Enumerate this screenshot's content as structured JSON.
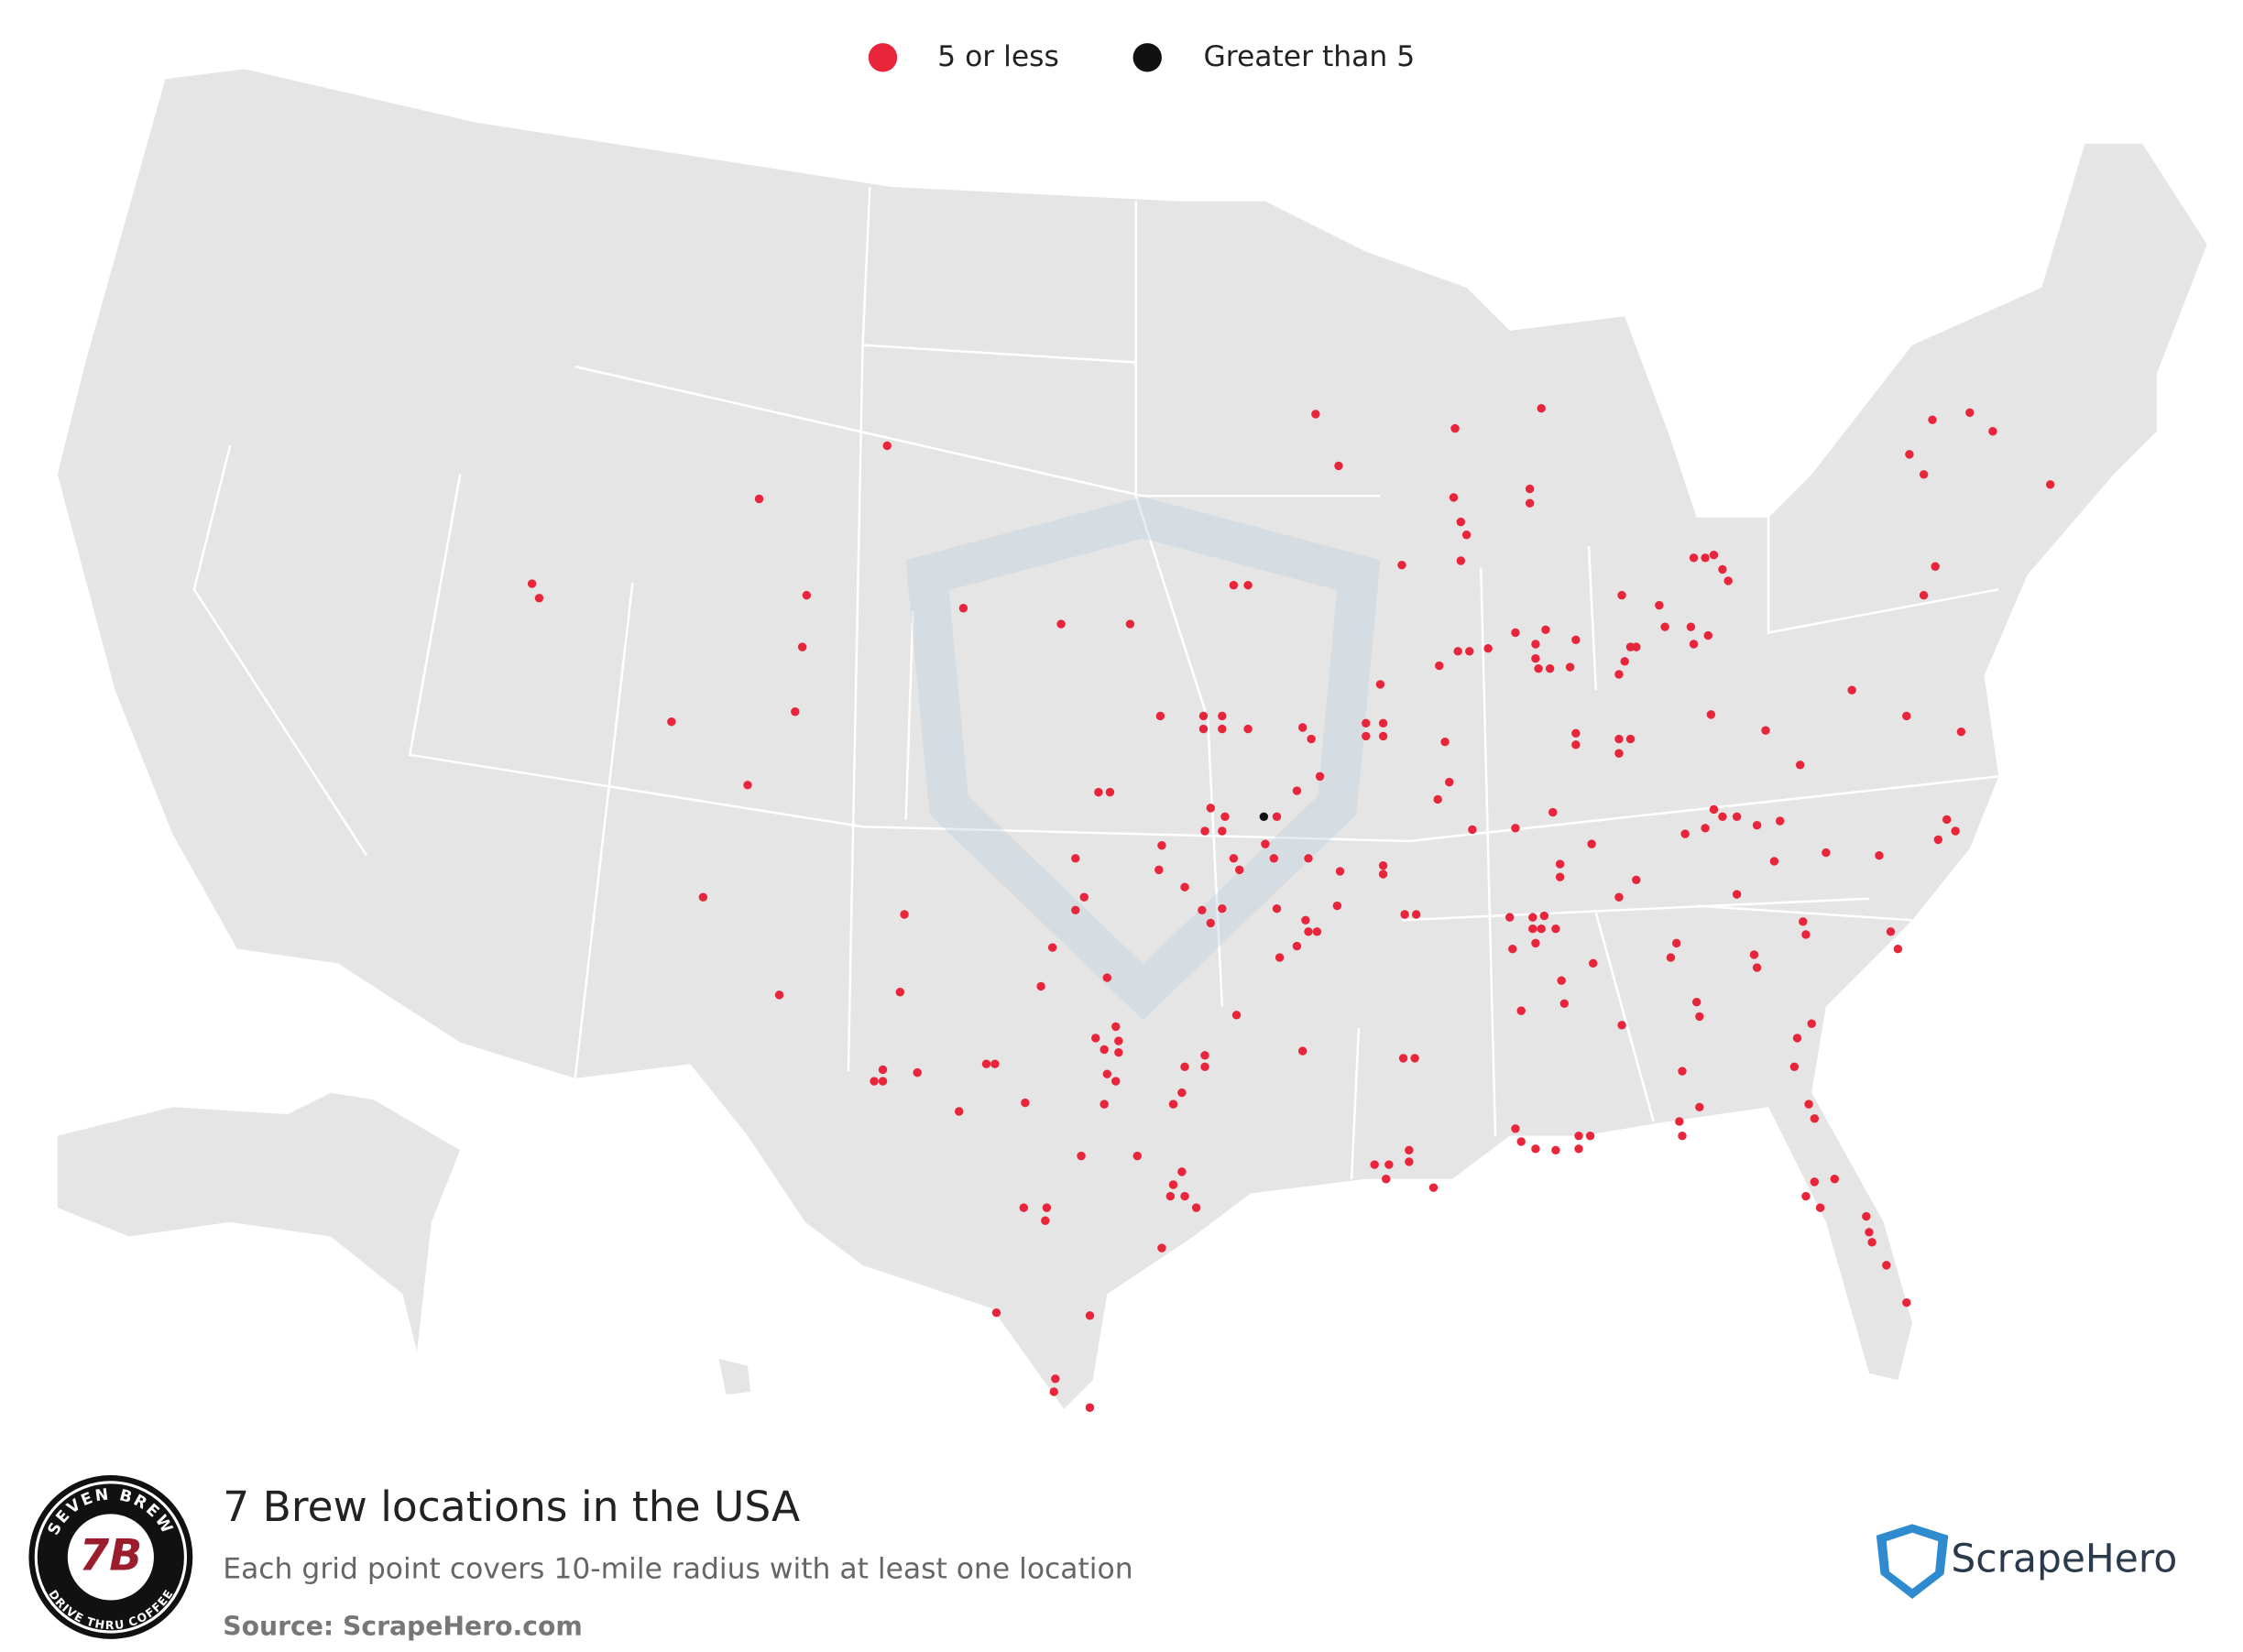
{
  "legend": {
    "items": [
      {
        "label": "5 or less",
        "color": "#e8253a"
      },
      {
        "label": "Greater than 5",
        "color": "#111111"
      }
    ]
  },
  "title": "7 Brew locations in the USA",
  "subtitle": "Each grid point covers 10-mile radius with at least one location",
  "source": "Source: ScrapeHero.com",
  "brand": "ScrapeHero",
  "logo": {
    "top": "SEVEN BREW",
    "mark": "7B",
    "bottom": "DRIVE THRU COFFEE"
  }
}
